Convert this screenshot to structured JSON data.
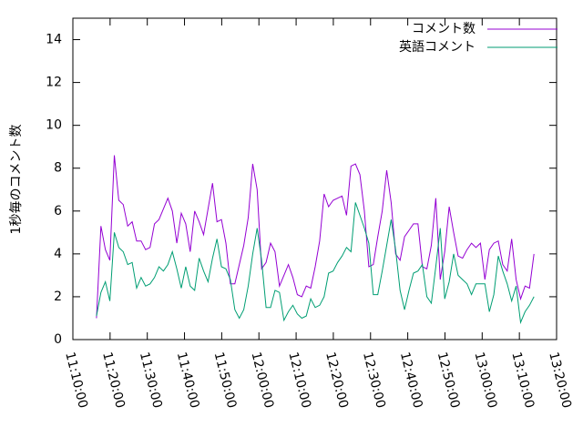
{
  "chart_data": {
    "type": "line",
    "y_label": "1秒毎のコメント数",
    "x": [
      "11:16:20",
      "11:17:32",
      "11:18:44",
      "11:19:56",
      "11:21:08",
      "11:22:20",
      "11:23:32",
      "11:24:44",
      "11:25:56",
      "11:27:08",
      "11:28:20",
      "11:29:32",
      "11:30:44",
      "11:31:56",
      "11:33:08",
      "11:34:20",
      "11:35:32",
      "11:36:44",
      "11:37:56",
      "11:39:08",
      "11:40:20",
      "11:41:32",
      "11:42:44",
      "11:43:56",
      "11:45:08",
      "11:46:20",
      "11:47:32",
      "11:48:44",
      "11:49:56",
      "11:51:08",
      "11:52:20",
      "11:53:32",
      "11:54:44",
      "11:55:56",
      "11:57:08",
      "11:58:20",
      "11:59:32",
      "12:00:44",
      "12:01:56",
      "12:03:08",
      "12:04:20",
      "12:05:32",
      "12:06:44",
      "12:07:56",
      "12:09:08",
      "12:10:20",
      "12:11:32",
      "12:12:44",
      "12:13:56",
      "12:15:08",
      "12:16:20",
      "12:17:32",
      "12:18:44",
      "12:19:56",
      "12:21:08",
      "12:22:20",
      "12:23:32",
      "12:24:44",
      "12:25:56",
      "12:27:08",
      "12:28:20",
      "12:29:32",
      "12:30:44",
      "12:31:56",
      "12:33:08",
      "12:34:20",
      "12:35:32",
      "12:36:44",
      "12:37:56",
      "12:39:08",
      "12:40:20",
      "12:41:32",
      "12:42:44",
      "12:43:56",
      "12:45:08",
      "12:46:20",
      "12:47:32",
      "12:48:44",
      "12:49:56",
      "12:51:08",
      "12:52:20",
      "12:53:32",
      "12:54:44",
      "12:55:56",
      "12:57:08",
      "12:58:20",
      "12:59:32",
      "13:00:44",
      "13:01:56",
      "13:03:08",
      "13:04:20",
      "13:05:32",
      "13:06:44",
      "13:07:56",
      "13:09:08",
      "13:10:20",
      "13:11:32",
      "13:12:44",
      "13:13:56"
    ],
    "series": [
      {
        "name": "コメント数",
        "color": "#9400d3",
        "values": [
          1.0,
          5.3,
          4.2,
          3.7,
          8.6,
          6.5,
          6.3,
          5.3,
          5.5,
          4.6,
          4.6,
          4.2,
          4.3,
          5.4,
          5.6,
          6.1,
          6.6,
          6.0,
          4.5,
          5.9,
          5.4,
          4.1,
          6.0,
          5.5,
          4.9,
          6.1,
          7.3,
          5.5,
          5.6,
          4.5,
          2.6,
          2.6,
          3.5,
          4.4,
          5.7,
          8.2,
          7.0,
          3.3,
          3.6,
          4.5,
          4.1,
          2.5,
          3.0,
          3.5,
          2.9,
          2.1,
          2.0,
          2.5,
          2.4,
          3.4,
          4.6,
          6.8,
          6.2,
          6.5,
          6.6,
          6.7,
          5.8,
          8.1,
          8.2,
          7.7,
          6.0,
          3.4,
          3.5,
          4.8,
          6.0,
          7.9,
          6.4,
          4.0,
          3.7,
          4.8,
          5.1,
          5.4,
          5.4,
          3.4,
          3.3,
          4.4,
          6.6,
          2.8,
          4.1,
          6.2,
          5.0,
          3.9,
          3.8,
          4.2,
          4.5,
          4.3,
          4.5,
          2.8,
          4.2,
          4.5,
          4.6,
          3.5,
          3.2,
          4.7,
          2.8,
          1.9,
          2.5,
          2.4,
          4.0
        ]
      },
      {
        "name": "英語コメント",
        "color": "#009e73",
        "values": [
          1.1,
          2.2,
          2.7,
          1.8,
          5.0,
          4.3,
          4.1,
          3.5,
          3.6,
          2.4,
          2.9,
          2.5,
          2.6,
          2.9,
          3.4,
          3.2,
          3.5,
          4.1,
          3.3,
          2.4,
          3.4,
          2.5,
          2.3,
          3.8,
          3.2,
          2.7,
          3.8,
          4.7,
          3.4,
          3.3,
          2.8,
          1.4,
          1.0,
          1.4,
          2.5,
          4.0,
          5.2,
          3.7,
          1.5,
          1.5,
          2.3,
          2.2,
          0.9,
          1.3,
          1.6,
          1.2,
          1.0,
          1.1,
          1.9,
          1.5,
          1.6,
          2.0,
          3.1,
          3.2,
          3.6,
          3.9,
          4.3,
          4.1,
          6.4,
          5.8,
          5.2,
          4.5,
          2.1,
          2.1,
          3.2,
          4.4,
          5.6,
          4.2,
          2.3,
          1.4,
          2.3,
          3.1,
          3.2,
          3.5,
          2.0,
          1.7,
          3.4,
          5.2,
          1.9,
          2.7,
          4.0,
          3.0,
          2.8,
          2.6,
          2.1,
          2.6,
          2.6,
          2.6,
          1.3,
          2.1,
          3.9,
          3.2,
          2.6,
          1.8,
          2.5,
          0.8,
          1.3,
          1.6,
          2.0
        ]
      }
    ],
    "xlim": [
      "11:10:00",
      "13:20:00"
    ],
    "xticks": [
      "11:10:00",
      "11:20:00",
      "11:30:00",
      "11:40:00",
      "11:50:00",
      "12:00:00",
      "12:10:00",
      "12:20:00",
      "12:30:00",
      "12:40:00",
      "12:50:00",
      "13:00:00",
      "13:10:00",
      "13:20:00"
    ],
    "ylim": [
      0,
      15
    ],
    "yticks": [
      0,
      2,
      4,
      6,
      8,
      10,
      12,
      14
    ],
    "legend": "upper right",
    "grid": false
  }
}
